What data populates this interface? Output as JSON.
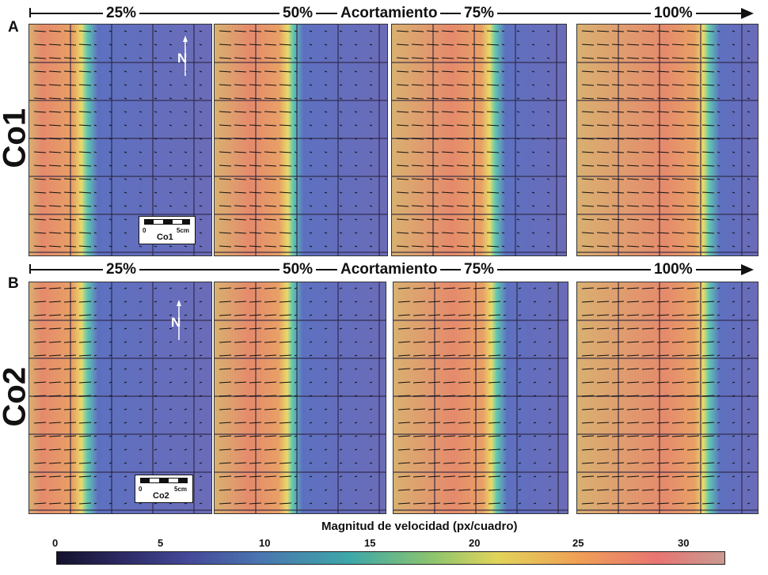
{
  "rows": [
    {
      "letter": "A",
      "name": "Co1",
      "scale_label": "Co1"
    },
    {
      "letter": "B",
      "name": "Co2",
      "scale_label": "Co2"
    }
  ],
  "axis": {
    "title": "Acortamiento",
    "stages": [
      "25%",
      "50%",
      "75%",
      "100%"
    ]
  },
  "scalebar": {
    "zero": "0",
    "max": "5cm"
  },
  "north": "N",
  "colorbar": {
    "title": "Magnitud de velocidad (px/cuadro)",
    "ticks": [
      "0",
      "5",
      "10",
      "15",
      "20",
      "25",
      "30"
    ],
    "range": [
      0,
      32
    ]
  },
  "panels": {
    "A": [
      0.25,
      0.5,
      0.75,
      1.0
    ],
    "B": [
      0.25,
      0.5,
      0.75,
      1.0
    ]
  }
}
